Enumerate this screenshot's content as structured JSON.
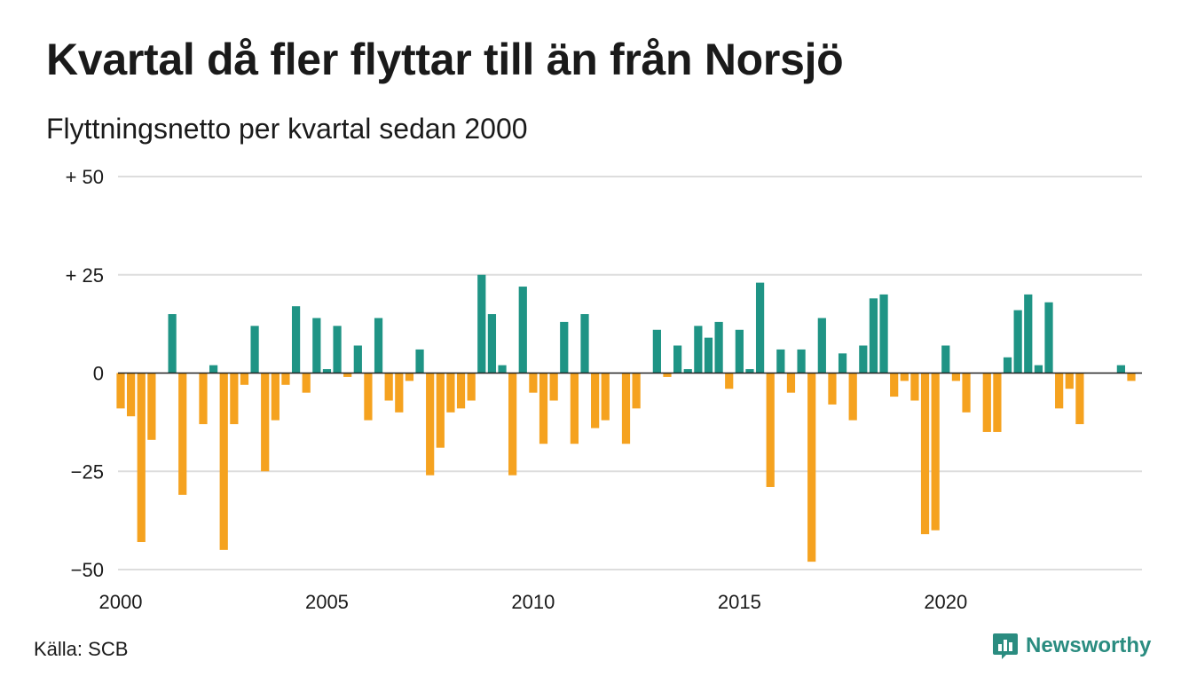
{
  "title": "Kvartal då fler flyttar till än från Norsjö",
  "subtitle": "Flyttningsnetto per kvartal sedan 2000",
  "source": "Källa: SCB",
  "brand": {
    "name": "Newsworthy",
    "icon": "newsworthy-logo-icon"
  },
  "colors": {
    "positive": "#1f9485",
    "negative": "#f5a21f",
    "grid": "#dddddd",
    "text": "#1a1a1a"
  },
  "chart_data": {
    "type": "bar",
    "x_start_year": 2000,
    "periods_per_year": 4,
    "ylim": [
      -50,
      50
    ],
    "y_ticks": [
      {
        "value": 50,
        "label": "+ 50"
      },
      {
        "value": 25,
        "label": "+ 25"
      },
      {
        "value": 0,
        "label": "0"
      },
      {
        "value": -25,
        "label": "−25"
      },
      {
        "value": -50,
        "label": "−50"
      }
    ],
    "x_ticks": [
      "2000",
      "2005",
      "2010",
      "2015",
      "2020"
    ],
    "values": [
      -9,
      -11,
      -43,
      -17,
      0,
      15,
      -31,
      0,
      -13,
      2,
      -45,
      -13,
      -3,
      12,
      -25,
      -12,
      -3,
      17,
      -5,
      14,
      1,
      12,
      -1,
      7,
      -12,
      14,
      -7,
      -10,
      -2,
      6,
      -26,
      -19,
      -10,
      -9,
      -7,
      25,
      15,
      2,
      -26,
      22,
      -5,
      -18,
      -7,
      13,
      -18,
      15,
      -14,
      -12,
      0,
      -18,
      -9,
      0,
      11,
      -1,
      7,
      1,
      12,
      9,
      13,
      -4,
      11,
      1,
      23,
      -29,
      6,
      -5,
      6,
      -48,
      14,
      -8,
      5,
      -12,
      7,
      19,
      20,
      -6,
      -2,
      -7,
      -41,
      -40,
      7,
      -2,
      -10,
      0,
      -15,
      -15,
      4,
      16,
      20,
      2,
      18,
      -9,
      -4,
      -13,
      0,
      0,
      0,
      2,
      -2
    ]
  }
}
